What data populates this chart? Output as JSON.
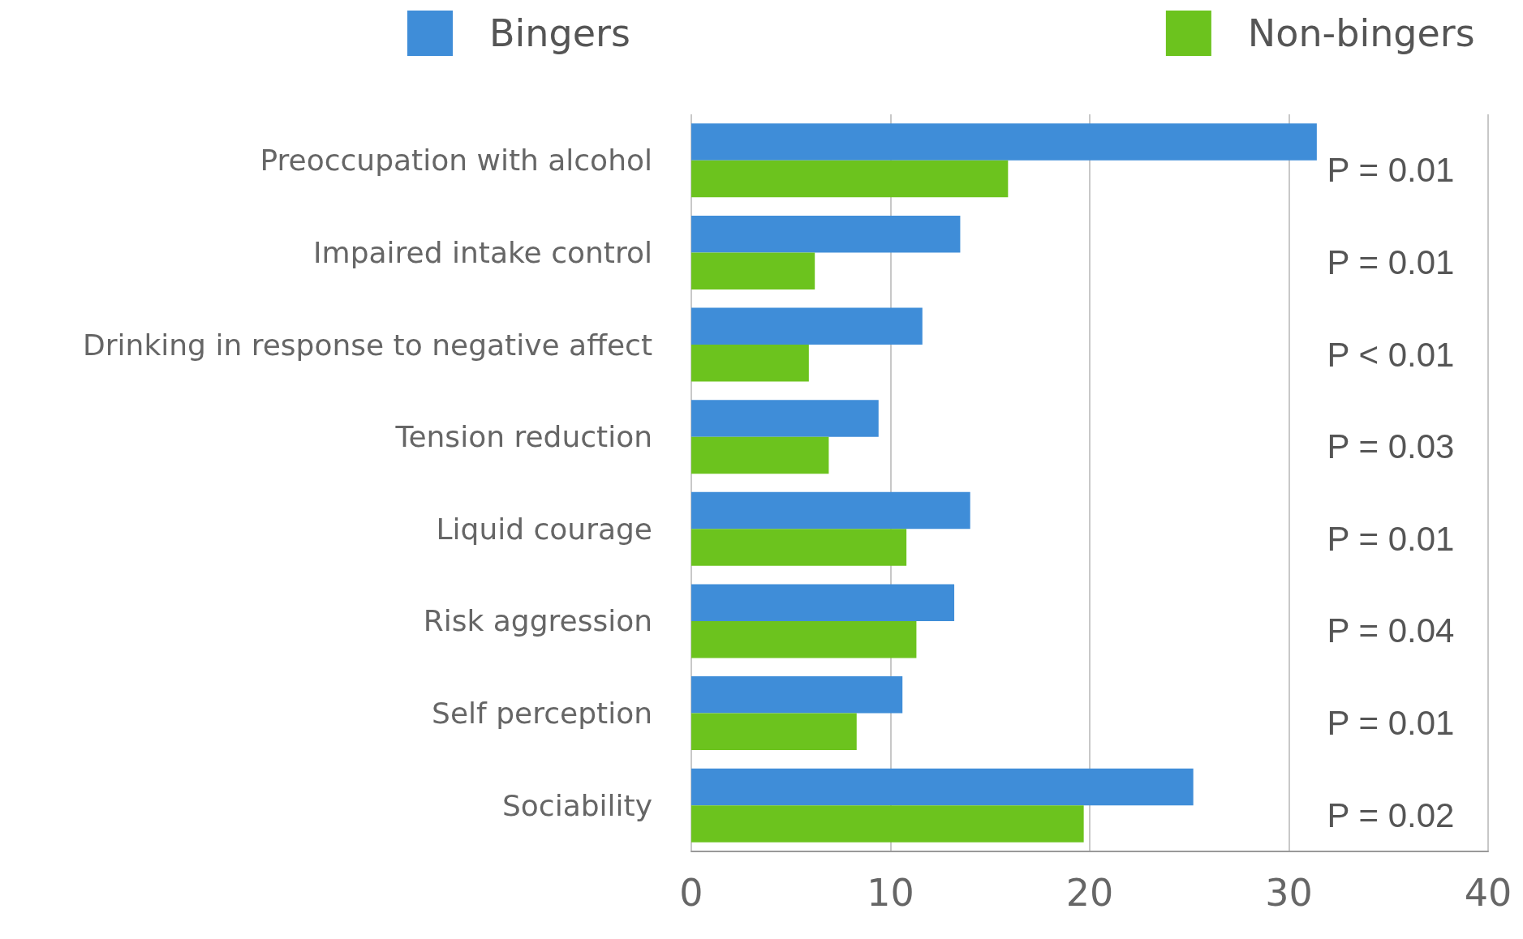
{
  "chart_data": {
    "type": "bar",
    "orientation": "horizontal",
    "categories": [
      "Preoccupation with alcohol",
      "Impaired intake control",
      "Drinking in response to negative affect",
      "Tension reduction",
      "Liquid courage",
      "Risk aggression",
      "Self perception",
      "Sociability"
    ],
    "series": [
      {
        "name": "Bingers",
        "color": "#3f8dd8",
        "values": [
          31.4,
          13.5,
          11.6,
          9.4,
          14.0,
          13.2,
          10.6,
          25.2
        ]
      },
      {
        "name": "Non-bingers",
        "color": "#6cc31e",
        "values": [
          15.9,
          6.2,
          5.9,
          6.9,
          10.8,
          11.3,
          8.3,
          19.7
        ]
      }
    ],
    "xlim": [
      0,
      40
    ],
    "xticks": [
      0,
      10,
      20,
      30,
      40
    ],
    "grid": "x",
    "legend": "top",
    "annotations": [
      "P = 0.01",
      "P = 0.01",
      "P < 0.01",
      "P = 0.03",
      "P = 0.01",
      "P = 0.04",
      "P = 0.01",
      "P = 0.02"
    ]
  }
}
